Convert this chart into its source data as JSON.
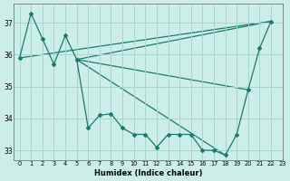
{
  "xlabel": "Humidex (Indice chaleur)",
  "bg_color": "#cceee8",
  "grid_color": "#aad4ce",
  "line_color": "#1a7a6e",
  "xlim": [
    -0.5,
    23
  ],
  "ylim": [
    32.7,
    37.6
  ],
  "yticks": [
    33,
    34,
    35,
    36,
    37
  ],
  "xticks": [
    0,
    1,
    2,
    3,
    4,
    5,
    6,
    7,
    8,
    9,
    10,
    11,
    12,
    13,
    14,
    15,
    16,
    17,
    18,
    19,
    20,
    21,
    22,
    23
  ],
  "series": [
    [
      0,
      35.9
    ],
    [
      1,
      37.3
    ],
    [
      2,
      36.5
    ],
    [
      3,
      35.7
    ],
    [
      4,
      36.6
    ],
    [
      5,
      35.85
    ],
    [
      6,
      33.7
    ],
    [
      7,
      34.1
    ],
    [
      8,
      34.15
    ],
    [
      9,
      33.7
    ],
    [
      10,
      33.5
    ],
    [
      11,
      33.5
    ],
    [
      12,
      33.1
    ],
    [
      13,
      33.5
    ],
    [
      14,
      33.5
    ],
    [
      15,
      33.5
    ],
    [
      16,
      33.0
    ],
    [
      17,
      33.0
    ],
    [
      18,
      32.85
    ],
    [
      19,
      33.5
    ],
    [
      20,
      34.9
    ],
    [
      21,
      36.2
    ],
    [
      22,
      37.05
    ]
  ],
  "fan_lines": [
    [
      [
        0,
        35.9
      ],
      [
        22,
        37.05
      ]
    ],
    [
      [
        5,
        35.85
      ],
      [
        22,
        37.05
      ]
    ],
    [
      [
        5,
        35.85
      ],
      [
        20,
        34.9
      ]
    ],
    [
      [
        5,
        35.85
      ],
      [
        18,
        32.85
      ]
    ]
  ]
}
